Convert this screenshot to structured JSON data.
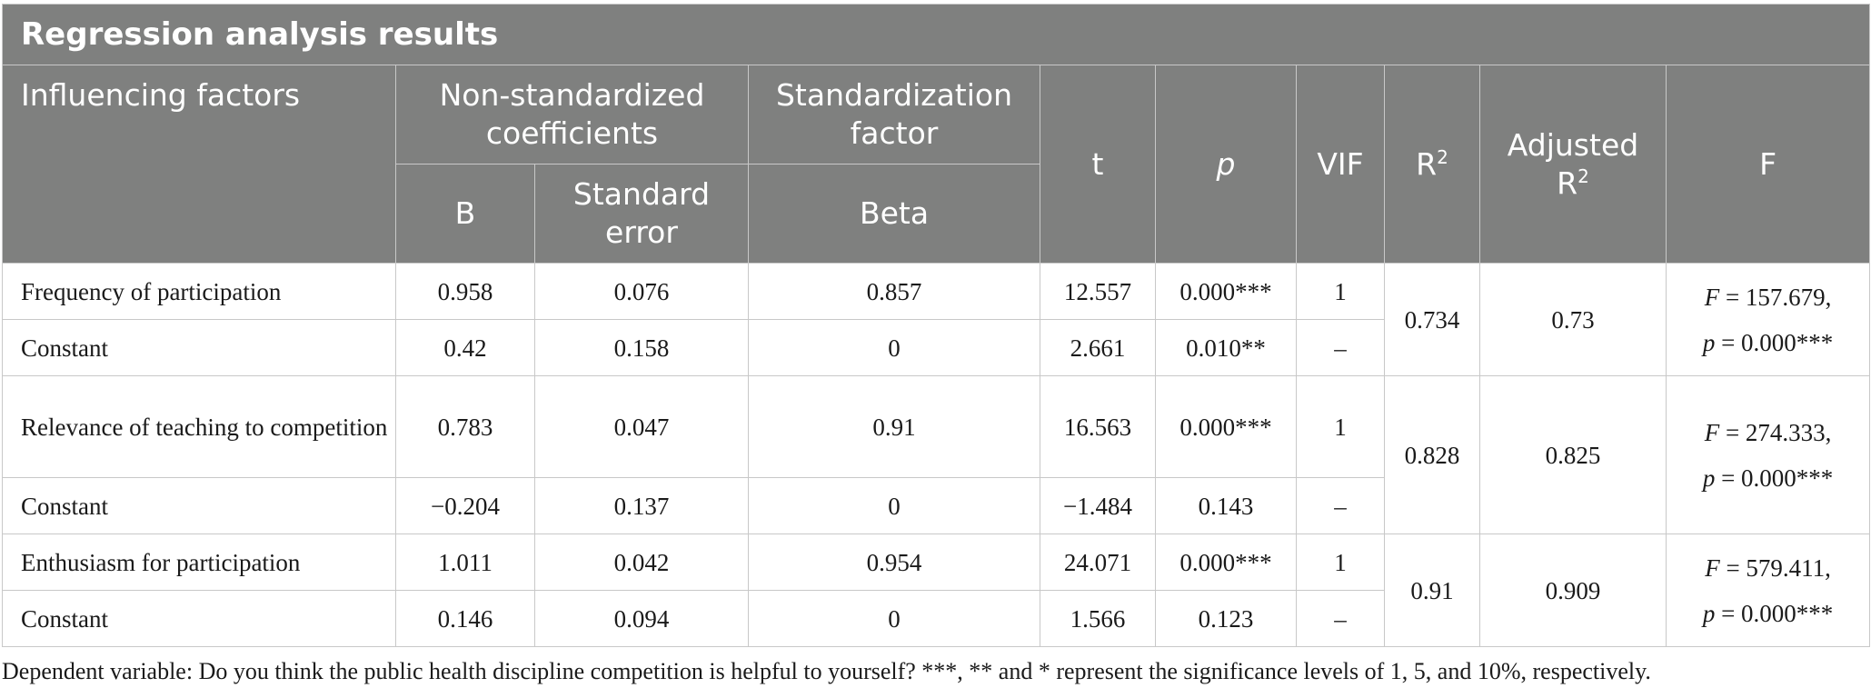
{
  "title": "Regression analysis results",
  "headers": {
    "influencing_factors": "Influencing factors",
    "non_standardized": "Non-standardized coefficients",
    "b": "B",
    "standard_error": "Standard error",
    "standardization_factor": "Standardization factor",
    "beta": "Beta",
    "t": "t",
    "p": "p",
    "vif": "VIF",
    "r2_base": "R",
    "r2_sup": "2",
    "adj_r2_base": "Adjusted R",
    "adj_r2_sup": "2",
    "f": "F"
  },
  "groups": [
    {
      "r2": "0.734",
      "adj_r2": "0.73",
      "f_label": "F",
      "f_value": " = 157.679,",
      "p_label": "p",
      "p_value": " = 0.000***",
      "rows": [
        {
          "factor": "Frequency of participation",
          "b": "0.958",
          "se": "0.076",
          "beta": "0.857",
          "t": "12.557",
          "p": "0.000***",
          "vif": "1"
        },
        {
          "factor": "Constant",
          "b": "0.42",
          "se": "0.158",
          "beta": "0",
          "t": "2.661",
          "p": "0.010**",
          "vif": "–"
        }
      ]
    },
    {
      "r2": "0.828",
      "adj_r2": "0.825",
      "f_label": "F",
      "f_value": " = 274.333,",
      "p_label": "p",
      "p_value": " = 0.000***",
      "rows": [
        {
          "factor": "Relevance of teaching to competition",
          "b": "0.783",
          "se": "0.047",
          "beta": "0.91",
          "t": "16.563",
          "p": "0.000***",
          "vif": "1"
        },
        {
          "factor": "Constant",
          "b": "−0.204",
          "se": "0.137",
          "beta": "0",
          "t": "−1.484",
          "p": "0.143",
          "vif": "–"
        }
      ]
    },
    {
      "r2": "0.91",
      "adj_r2": "0.909",
      "f_label": "F",
      "f_value": " = 579.411,",
      "p_label": "p",
      "p_value": " = 0.000***",
      "rows": [
        {
          "factor": "Enthusiasm for participation",
          "b": "1.011",
          "se": "0.042",
          "beta": "0.954",
          "t": "24.071",
          "p": "0.000***",
          "vif": "1"
        },
        {
          "factor": "Constant",
          "b": "0.146",
          "se": "0.094",
          "beta": "0",
          "t": "1.566",
          "p": "0.123",
          "vif": "–"
        }
      ]
    }
  ],
  "note": "Dependent variable: Do you think the public health discipline competition is helpful to yourself? ***, ** and * represent the significance levels of 1, 5, and 10%, respectively."
}
